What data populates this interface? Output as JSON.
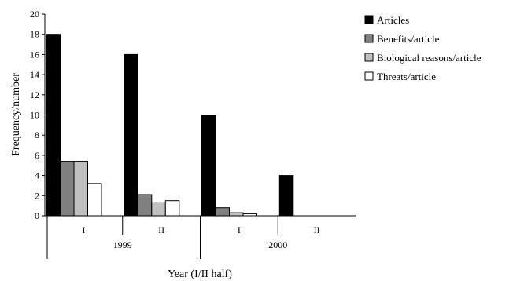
{
  "chart_data": {
    "type": "bar",
    "categories": [
      "I",
      "II",
      "I",
      "II"
    ],
    "groups": [
      {
        "label": "1999",
        "categories": [
          "I",
          "II"
        ]
      },
      {
        "label": "2000",
        "categories": [
          "I",
          "II"
        ]
      }
    ],
    "series": [
      {
        "name": "Articles",
        "color": "#000000",
        "values": [
          18,
          16,
          10,
          4
        ]
      },
      {
        "name": "Benefits/article",
        "color": "#808080",
        "values": [
          5.4,
          2.1,
          0.8,
          0
        ]
      },
      {
        "name": "Biological reasons/article",
        "color": "#c0c0c0",
        "values": [
          5.4,
          1.3,
          0.3,
          0
        ]
      },
      {
        "name": "Threats/article",
        "color": "#ffffff",
        "values": [
          3.2,
          1.5,
          0.2,
          0
        ]
      }
    ],
    "xlabel": "Year (I/II half)",
    "ylabel": "Frequency/number",
    "ylim": [
      0,
      20
    ],
    "yticks": [
      "0",
      "2",
      "4",
      "6",
      "8",
      "10",
      "12",
      "14",
      "16",
      "18",
      "20"
    ],
    "grid": false,
    "legend_position": "right"
  }
}
